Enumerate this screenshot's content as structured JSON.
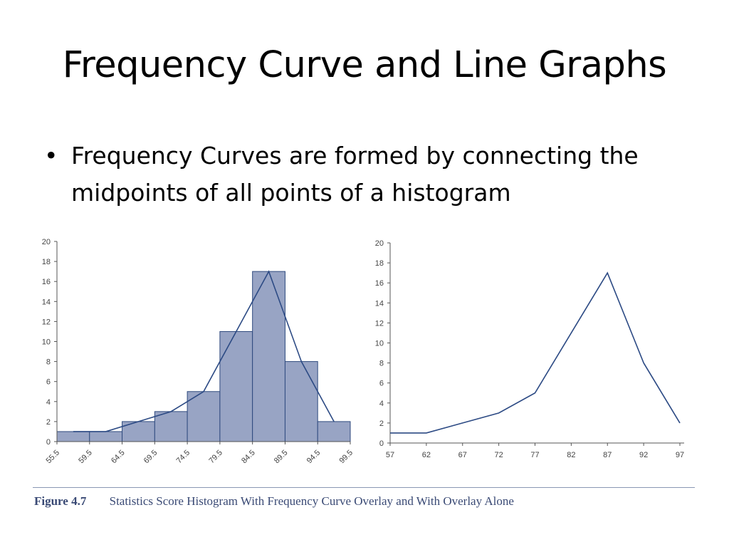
{
  "slide": {
    "title": "Frequency Curve and Line Graphs",
    "bullet": "Frequency Curves are formed by connecting the midpoints of all points of a histogram"
  },
  "caption": {
    "figure_label": "Figure 4.7",
    "text": "Statistics Score Histogram With Frequency Curve Overlay and With Overlay Alone"
  },
  "colors": {
    "bar_fill": "#98a4c4",
    "bar_stroke": "#2f4a7e",
    "line": "#2c4a84",
    "axis": "#555555",
    "caption": "#3a4a75"
  },
  "chart_data": [
    {
      "type": "bar",
      "overlay": "line",
      "bin_edges": [
        55.5,
        59.5,
        64.5,
        69.5,
        74.5,
        79.5,
        84.5,
        89.5,
        94.5,
        99.5
      ],
      "x_tick_labels": [
        "55.5",
        "59.5",
        "64.5",
        "69.5",
        "74.5",
        "79.5",
        "84.5",
        "89.5",
        "94.5",
        "99.5"
      ],
      "values": [
        1,
        1,
        2,
        3,
        5,
        11,
        17,
        8,
        2
      ],
      "curve_points": [
        [
          57,
          1
        ],
        [
          62,
          1
        ],
        [
          67,
          2
        ],
        [
          72,
          3
        ],
        [
          77,
          5
        ],
        [
          82,
          11
        ],
        [
          87,
          17
        ],
        [
          92,
          8
        ],
        [
          97,
          2
        ]
      ],
      "ylim": [
        0,
        20
      ],
      "y_ticks": [
        0,
        2,
        4,
        6,
        8,
        10,
        12,
        14,
        16,
        18,
        20
      ],
      "grid": false
    },
    {
      "type": "line",
      "x": [
        57,
        62,
        67,
        72,
        77,
        82,
        87,
        92,
        97
      ],
      "y": [
        1,
        1,
        2,
        3,
        5,
        11,
        17,
        8,
        2
      ],
      "x_tick_labels": [
        "57",
        "62",
        "67",
        "72",
        "77",
        "82",
        "87",
        "92",
        "97"
      ],
      "ylim": [
        0,
        20
      ],
      "y_ticks": [
        0,
        2,
        4,
        6,
        8,
        10,
        12,
        14,
        16,
        18,
        20
      ],
      "grid": false
    }
  ]
}
